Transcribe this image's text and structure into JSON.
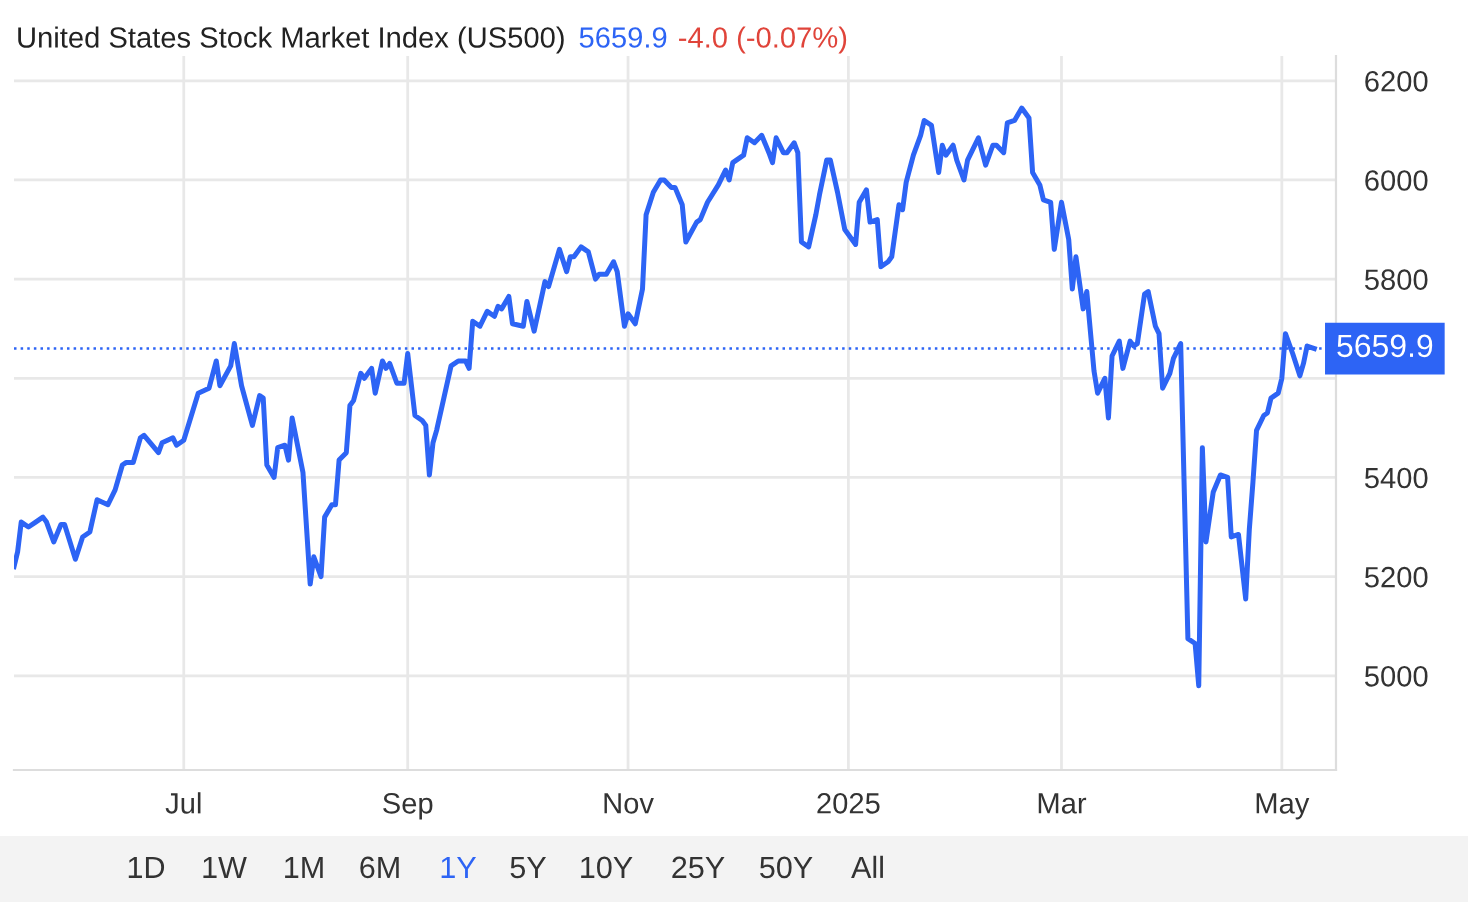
{
  "chart_data": {
    "type": "line",
    "title": "United States Stock Market Index (US500)",
    "annotations": [
      "5659.9",
      "-4.0 (-0.07%)",
      "1D",
      "1W",
      "1M",
      "6M",
      "1Y",
      "5Y",
      "10Y",
      "25Y",
      "50Y",
      "All"
    ],
    "series": [
      {
        "color": "#2d64f5",
        "x": [
          "2024-05-15",
          "2024-05-16",
          "2024-05-17",
          "2024-05-19",
          "2024-05-21",
          "2024-05-23",
          "2024-05-24",
          "2024-05-26",
          "2024-05-28",
          "2024-05-29",
          "2024-06-01",
          "2024-06-03",
          "2024-06-05",
          "2024-06-07",
          "2024-06-10",
          "2024-06-12",
          "2024-06-14",
          "2024-06-15",
          "2024-06-17",
          "2024-06-19",
          "2024-06-20",
          "2024-06-24",
          "2024-06-25",
          "2024-06-28",
          "2024-06-29",
          "2024-07-01",
          "2024-07-05",
          "2024-07-08",
          "2024-07-10",
          "2024-07-11",
          "2024-07-14",
          "2024-07-15",
          "2024-07-17",
          "2024-07-20",
          "2024-07-22",
          "2024-07-23",
          "2024-07-24",
          "2024-07-26",
          "2024-07-27",
          "2024-07-29",
          "2024-07-30",
          "2024-07-31",
          "2024-08-03",
          "2024-08-05",
          "2024-08-06",
          "2024-08-08",
          "2024-08-09",
          "2024-08-11",
          "2024-08-12",
          "2024-08-13",
          "2024-08-15",
          "2024-08-16",
          "2024-08-17",
          "2024-08-19",
          "2024-08-20",
          "2024-08-22",
          "2024-08-23",
          "2024-08-25",
          "2024-08-26",
          "2024-08-27",
          "2024-08-29",
          "2024-08-31",
          "2024-09-01",
          "2024-09-03",
          "2024-09-05",
          "2024-09-06",
          "2024-09-07",
          "2024-09-08",
          "2024-09-09",
          "2024-09-11",
          "2024-09-13",
          "2024-09-15",
          "2024-09-17",
          "2024-09-18",
          "2024-09-19",
          "2024-09-21",
          "2024-09-23",
          "2024-09-25",
          "2024-09-26",
          "2024-09-27",
          "2024-09-29",
          "2024-09-30",
          "2024-10-03",
          "2024-10-04",
          "2024-10-06",
          "2024-10-09",
          "2024-10-10",
          "2024-10-13",
          "2024-10-15",
          "2024-10-16",
          "2024-10-17",
          "2024-10-19",
          "2024-10-21",
          "2024-10-23",
          "2024-10-24",
          "2024-10-26",
          "2024-10-28",
          "2024-10-29",
          "2024-10-31",
          "2024-11-01",
          "2024-11-03",
          "2024-11-05",
          "2024-11-06",
          "2024-11-08",
          "2024-11-10",
          "2024-11-11",
          "2024-11-13",
          "2024-11-14",
          "2024-11-16",
          "2024-11-17",
          "2024-11-20",
          "2024-11-21",
          "2024-11-23",
          "2024-11-26",
          "2024-11-28",
          "2024-11-29",
          "2024-11-30",
          "2024-12-01",
          "2024-12-03",
          "2024-12-04",
          "2024-12-06",
          "2024-12-08",
          "2024-12-10",
          "2024-12-11",
          "2024-12-12",
          "2024-12-14",
          "2024-12-15",
          "2024-12-17",
          "2024-12-18",
          "2024-12-19",
          "2024-12-21",
          "2024-12-23",
          "2024-12-24",
          "2024-12-26",
          "2024-12-27",
          "2024-12-29",
          "2024-12-31",
          "2025-01-02",
          "2025-01-03",
          "2025-01-04",
          "2025-01-06",
          "2025-01-07",
          "2025-01-09",
          "2025-01-10",
          "2025-01-12",
          "2025-01-13",
          "2025-01-15",
          "2025-01-16",
          "2025-01-17",
          "2025-01-19",
          "2025-01-21",
          "2025-01-22",
          "2025-01-24",
          "2025-01-26",
          "2025-01-27",
          "2025-01-28",
          "2025-01-30",
          "2025-01-31",
          "2025-02-02",
          "2025-02-03",
          "2025-02-06",
          "2025-02-08",
          "2025-02-10",
          "2025-02-11",
          "2025-02-13",
          "2025-02-14",
          "2025-02-16",
          "2025-02-18",
          "2025-02-20",
          "2025-02-21",
          "2025-02-23",
          "2025-02-24",
          "2025-02-26",
          "2025-02-27",
          "2025-03-01",
          "2025-03-03",
          "2025-03-04",
          "2025-03-05",
          "2025-03-07",
          "2025-03-08",
          "2025-03-10",
          "2025-03-11",
          "2025-03-13",
          "2025-03-14",
          "2025-03-15",
          "2025-03-17",
          "2025-03-18",
          "2025-03-20",
          "2025-03-21",
          "2025-03-22",
          "2025-03-24",
          "2025-03-25",
          "2025-03-27",
          "2025-03-28",
          "2025-03-29",
          "2025-03-31",
          "2025-04-01",
          "2025-04-03",
          "2025-04-05",
          "2025-04-07",
          "2025-04-08",
          "2025-04-09",
          "2025-04-10",
          "2025-04-12",
          "2025-04-14",
          "2025-04-16",
          "2025-04-17",
          "2025-04-19",
          "2025-04-21",
          "2025-04-22",
          "2025-04-23",
          "2025-04-24",
          "2025-04-26",
          "2025-04-27",
          "2025-04-28",
          "2025-04-30",
          "2025-05-01",
          "2025-05-02",
          "2025-05-04",
          "2025-05-06",
          "2025-05-07",
          "2025-05-08",
          "2025-05-10"
        ],
        "values": [
          5220,
          5250,
          5310,
          5300,
          5310,
          5320,
          5310,
          5270,
          5305,
          5305,
          5235,
          5280,
          5290,
          5355,
          5345,
          5375,
          5425,
          5430,
          5430,
          5480,
          5485,
          5450,
          5470,
          5480,
          5465,
          5475,
          5570,
          5580,
          5635,
          5585,
          5625,
          5670,
          5585,
          5505,
          5565,
          5560,
          5425,
          5400,
          5460,
          5465,
          5435,
          5520,
          5410,
          5185,
          5240,
          5200,
          5320,
          5345,
          5345,
          5435,
          5450,
          5545,
          5555,
          5610,
          5600,
          5620,
          5570,
          5635,
          5620,
          5630,
          5590,
          5590,
          5650,
          5525,
          5515,
          5505,
          5405,
          5470,
          5495,
          5560,
          5625,
          5635,
          5635,
          5620,
          5715,
          5705,
          5735,
          5725,
          5745,
          5740,
          5765,
          5710,
          5705,
          5755,
          5695,
          5795,
          5785,
          5860,
          5815,
          5845,
          5845,
          5865,
          5855,
          5800,
          5810,
          5810,
          5835,
          5815,
          5705,
          5730,
          5710,
          5780,
          5930,
          5975,
          6000,
          6000,
          5985,
          5985,
          5950,
          5875,
          5915,
          5920,
          5955,
          5990,
          6020,
          6000,
          6035,
          6040,
          6050,
          6085,
          6075,
          6090,
          6055,
          6035,
          6085,
          6055,
          6055,
          6075,
          6055,
          5875,
          5865,
          5930,
          5970,
          6040,
          6040,
          5975,
          5900,
          5880,
          5870,
          5955,
          5980,
          5915,
          5920,
          5825,
          5835,
          5845,
          5950,
          5940,
          5995,
          6050,
          6090,
          6120,
          6110,
          6015,
          6070,
          6050,
          6070,
          6040,
          6000,
          6040,
          6085,
          6030,
          6070,
          6070,
          6055,
          6115,
          6120,
          6145,
          6125,
          6015,
          5990,
          5960,
          5955,
          5860,
          5955,
          5880,
          5780,
          5845,
          5740,
          5775,
          5615,
          5570,
          5600,
          5520,
          5645,
          5675,
          5620,
          5675,
          5665,
          5670,
          5770,
          5775,
          5705,
          5690,
          5580,
          5610,
          5640,
          5670,
          5075,
          5065,
          4980,
          5460,
          5270,
          5370,
          5405,
          5400,
          5280,
          5285,
          5155,
          5295,
          5390,
          5495,
          5525,
          5530,
          5560,
          5570,
          5600,
          5690,
          5650,
          5605,
          5630,
          5665,
          5659.9
        ]
      }
    ],
    "xlim": [
      "2024-05-15",
      "2025-05-16"
    ],
    "xticks": [
      {
        "value": "2024-07-01",
        "label": "Jul"
      },
      {
        "value": "2024-09-01",
        "label": "Sep"
      },
      {
        "value": "2024-11-01",
        "label": "Nov"
      },
      {
        "value": "2025-01-01",
        "label": "2025"
      },
      {
        "value": "2025-03-01",
        "label": "Mar"
      },
      {
        "value": "2025-05-01",
        "label": "May"
      }
    ],
    "ylim": [
      4810,
      6250
    ],
    "yticks": [
      5000,
      5200,
      5400,
      {
        "value": 5600,
        "label": null
      },
      5800,
      6000,
      6200
    ],
    "ref_lines": [
      {
        "axis": "y",
        "value": 5659.9,
        "label": "5659.9",
        "color": "#2d64f5",
        "line_style": "dotted"
      }
    ],
    "grid": true,
    "legend": false,
    "marker": "none",
    "line_style": "solid"
  }
}
